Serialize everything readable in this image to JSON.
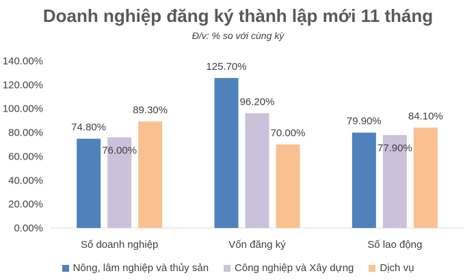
{
  "chart_data": {
    "type": "bar",
    "title": "Doanh nghiệp đăng ký thành lập mới 11 tháng",
    "subtitle": "Đ/v: % so với cùng kỳ",
    "categories": [
      "Số doanh nghiệp",
      "Vốn đăng ký",
      "Số lao động"
    ],
    "series": [
      {
        "name": "Nông, lâm nghiệp và thủy sản",
        "values": [
          74.8,
          125.7,
          79.9
        ],
        "labels": [
          "74.80%",
          "125.70%",
          "79.90%"
        ],
        "color": "#4f81bd"
      },
      {
        "name": "Công nghiệp và Xây dựng",
        "values": [
          76.0,
          96.2,
          77.9
        ],
        "labels": [
          "76.00%",
          "96.20%",
          "77.90%"
        ],
        "color": "#ccc1da"
      },
      {
        "name": "Dịch vụ",
        "values": [
          89.3,
          70.0,
          84.1
        ],
        "labels": [
          "89.30%",
          "70.00%",
          "84.10%"
        ],
        "color": "#fac090"
      }
    ],
    "y_ticks": [
      "0.00%",
      "20.00%",
      "40.00%",
      "60.00%",
      "80.00%",
      "100.00%",
      "120.00%",
      "140.00%"
    ],
    "ylim": [
      0,
      140
    ],
    "grid": false,
    "legend": "bottom"
  }
}
